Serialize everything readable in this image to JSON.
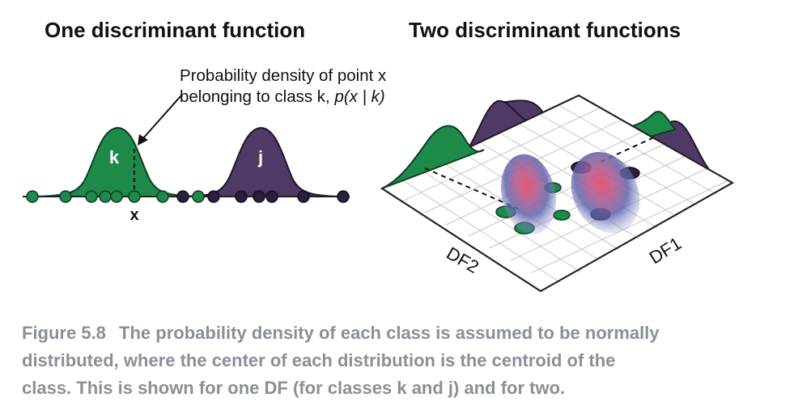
{
  "titles": {
    "left": "One discriminant function",
    "right": "Two discriminant functions"
  },
  "annotation": {
    "line1": "Probability density of point x",
    "line2_prefix": "belonging to class k, ",
    "line2_formula": "p(x | k)"
  },
  "one_df": {
    "class_k_label": "k",
    "class_j_label": "j",
    "point_label": "x"
  },
  "two_df": {
    "axis1_label": "DF1",
    "axis2_label": "DF2"
  },
  "caption": {
    "label": "Figure 5.8",
    "line1": "The probability density of each class is assumed to be normally",
    "line2": "distributed, where the center of each distribution is the centroid of the",
    "line3": "class. This is shown for one DF (for classes k and j) and for two."
  },
  "colors": {
    "class_k": "#1e8a4a",
    "class_j": "#4f3a66",
    "centroid_core": "#d8506a",
    "blob": "#5d62a8",
    "caption": "#8a8f98"
  }
}
